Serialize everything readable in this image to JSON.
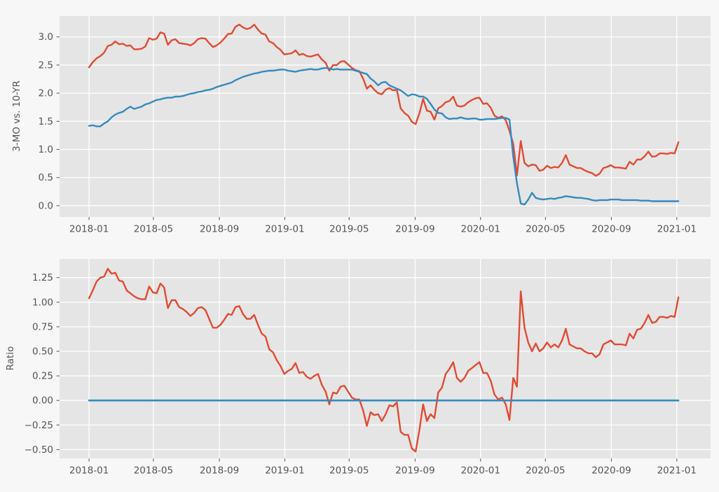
{
  "figure": {
    "bg": "#f7f7f7",
    "panel_bg": "#e5e5e5",
    "grid_color": "#ffffff",
    "tick_color": "#555555",
    "label_color": "#555555",
    "accent_orange": "#e24a33",
    "accent_blue": "#348abd"
  },
  "chart_data": [
    {
      "type": "line",
      "title": "",
      "xlabel": "",
      "ylabel": "3-MO vs. 10-YR",
      "grid": true,
      "legend": "none",
      "ylim": [
        -0.2,
        3.37
      ],
      "xlim_dates": [
        "2017-11-07",
        "2021-03-05"
      ],
      "yticks": [
        0.0,
        0.5,
        1.0,
        1.5,
        2.0,
        2.5,
        3.0
      ],
      "ytick_labels": [
        "0.0",
        "0.5",
        "1.0",
        "1.5",
        "2.0",
        "2.5",
        "3.0"
      ],
      "xtick_labels": [
        "2018-01",
        "2018-05",
        "2018-09",
        "2019-01",
        "2019-05",
        "2019-09",
        "2020-01",
        "2020-05",
        "2020-09",
        "2021-01"
      ],
      "x": [
        "2018-01-01",
        "2018-01-08",
        "2018-01-15",
        "2018-01-22",
        "2018-01-29",
        "2018-02-05",
        "2018-02-12",
        "2018-02-19",
        "2018-02-26",
        "2018-03-05",
        "2018-03-12",
        "2018-03-19",
        "2018-03-26",
        "2018-04-02",
        "2018-04-09",
        "2018-04-16",
        "2018-04-23",
        "2018-04-30",
        "2018-05-07",
        "2018-05-14",
        "2018-05-21",
        "2018-05-28",
        "2018-06-04",
        "2018-06-11",
        "2018-06-18",
        "2018-06-25",
        "2018-07-02",
        "2018-07-09",
        "2018-07-16",
        "2018-07-23",
        "2018-07-30",
        "2018-08-06",
        "2018-08-13",
        "2018-08-20",
        "2018-08-27",
        "2018-09-03",
        "2018-09-10",
        "2018-09-17",
        "2018-09-24",
        "2018-10-01",
        "2018-10-08",
        "2018-10-15",
        "2018-10-22",
        "2018-10-29",
        "2018-11-05",
        "2018-11-12",
        "2018-11-19",
        "2018-11-26",
        "2018-12-03",
        "2018-12-10",
        "2018-12-17",
        "2018-12-24",
        "2018-12-31",
        "2019-01-07",
        "2019-01-14",
        "2019-01-21",
        "2019-01-28",
        "2019-02-04",
        "2019-02-11",
        "2019-02-18",
        "2019-02-25",
        "2019-03-04",
        "2019-03-11",
        "2019-03-18",
        "2019-03-25",
        "2019-04-01",
        "2019-04-08",
        "2019-04-15",
        "2019-04-22",
        "2019-04-29",
        "2019-05-06",
        "2019-05-13",
        "2019-05-20",
        "2019-05-27",
        "2019-06-03",
        "2019-06-10",
        "2019-06-17",
        "2019-06-24",
        "2019-07-01",
        "2019-07-08",
        "2019-07-15",
        "2019-07-22",
        "2019-07-29",
        "2019-08-05",
        "2019-08-12",
        "2019-08-19",
        "2019-08-26",
        "2019-09-02",
        "2019-09-09",
        "2019-09-16",
        "2019-09-23",
        "2019-09-30",
        "2019-10-07",
        "2019-10-14",
        "2019-10-21",
        "2019-10-28",
        "2019-11-04",
        "2019-11-11",
        "2019-11-18",
        "2019-11-25",
        "2019-12-02",
        "2019-12-09",
        "2019-12-16",
        "2019-12-23",
        "2019-12-30",
        "2020-01-06",
        "2020-01-13",
        "2020-01-20",
        "2020-01-27",
        "2020-02-03",
        "2020-02-10",
        "2020-02-17",
        "2020-02-24",
        "2020-03-02",
        "2020-03-09",
        "2020-03-16",
        "2020-03-23",
        "2020-03-30",
        "2020-04-06",
        "2020-04-13",
        "2020-04-20",
        "2020-04-27",
        "2020-05-04",
        "2020-05-11",
        "2020-05-18",
        "2020-05-25",
        "2020-06-01",
        "2020-06-08",
        "2020-06-15",
        "2020-06-22",
        "2020-06-29",
        "2020-07-06",
        "2020-07-13",
        "2020-07-20",
        "2020-07-27",
        "2020-08-03",
        "2020-08-10",
        "2020-08-17",
        "2020-08-24",
        "2020-08-31",
        "2020-09-07",
        "2020-09-14",
        "2020-09-21",
        "2020-09-28",
        "2020-10-05",
        "2020-10-12",
        "2020-10-19",
        "2020-10-26",
        "2020-11-02",
        "2020-11-09",
        "2020-11-16",
        "2020-11-23",
        "2020-11-30",
        "2020-12-07",
        "2020-12-14",
        "2020-12-21",
        "2020-12-28",
        "2021-01-04"
      ],
      "series": [
        {
          "name": "10-yr",
          "color": "#e24a33",
          "values": [
            2.46,
            2.55,
            2.62,
            2.66,
            2.72,
            2.84,
            2.86,
            2.92,
            2.87,
            2.88,
            2.84,
            2.85,
            2.78,
            2.78,
            2.79,
            2.83,
            2.98,
            2.95,
            2.97,
            3.08,
            3.06,
            2.86,
            2.94,
            2.96,
            2.89,
            2.88,
            2.87,
            2.85,
            2.89,
            2.96,
            2.98,
            2.97,
            2.89,
            2.82,
            2.85,
            2.9,
            2.97,
            3.05,
            3.06,
            3.18,
            3.22,
            3.17,
            3.14,
            3.16,
            3.22,
            3.13,
            3.06,
            3.04,
            2.92,
            2.89,
            2.82,
            2.77,
            2.69,
            2.7,
            2.71,
            2.76,
            2.68,
            2.7,
            2.66,
            2.65,
            2.67,
            2.69,
            2.6,
            2.54,
            2.4,
            2.5,
            2.5,
            2.56,
            2.57,
            2.51,
            2.45,
            2.41,
            2.39,
            2.26,
            2.08,
            2.14,
            2.06,
            2.0,
            1.98,
            2.06,
            2.09,
            2.05,
            2.06,
            1.73,
            1.65,
            1.6,
            1.49,
            1.45,
            1.64,
            1.9,
            1.69,
            1.67,
            1.53,
            1.73,
            1.77,
            1.84,
            1.86,
            1.94,
            1.78,
            1.76,
            1.78,
            1.84,
            1.88,
            1.91,
            1.92,
            1.81,
            1.82,
            1.74,
            1.6,
            1.56,
            1.59,
            1.52,
            1.33,
            1.1,
            0.54,
            1.15,
            0.76,
            0.7,
            0.73,
            0.72,
            0.62,
            0.64,
            0.71,
            0.67,
            0.69,
            0.68,
            0.76,
            0.9,
            0.73,
            0.7,
            0.67,
            0.67,
            0.63,
            0.6,
            0.58,
            0.53,
            0.57,
            0.67,
            0.69,
            0.72,
            0.68,
            0.68,
            0.67,
            0.66,
            0.78,
            0.73,
            0.82,
            0.82,
            0.88,
            0.96,
            0.87,
            0.88,
            0.93,
            0.93,
            0.92,
            0.94,
            0.93,
            1.13
          ]
        },
        {
          "name": "3-mo",
          "color": "#348abd",
          "values": [
            1.42,
            1.43,
            1.41,
            1.41,
            1.46,
            1.5,
            1.57,
            1.62,
            1.65,
            1.67,
            1.72,
            1.76,
            1.72,
            1.74,
            1.76,
            1.8,
            1.82,
            1.85,
            1.88,
            1.89,
            1.91,
            1.92,
            1.92,
            1.94,
            1.94,
            1.95,
            1.97,
            1.99,
            2.0,
            2.02,
            2.03,
            2.05,
            2.06,
            2.08,
            2.11,
            2.13,
            2.15,
            2.17,
            2.19,
            2.23,
            2.26,
            2.29,
            2.31,
            2.33,
            2.35,
            2.36,
            2.38,
            2.39,
            2.4,
            2.4,
            2.41,
            2.42,
            2.42,
            2.4,
            2.39,
            2.38,
            2.4,
            2.41,
            2.42,
            2.43,
            2.42,
            2.42,
            2.44,
            2.45,
            2.44,
            2.42,
            2.43,
            2.42,
            2.42,
            2.42,
            2.42,
            2.4,
            2.38,
            2.36,
            2.34,
            2.26,
            2.21,
            2.14,
            2.19,
            2.2,
            2.14,
            2.11,
            2.08,
            2.05,
            2.0,
            1.95,
            1.98,
            1.97,
            1.94,
            1.94,
            1.9,
            1.81,
            1.71,
            1.65,
            1.64,
            1.57,
            1.54,
            1.55,
            1.55,
            1.57,
            1.55,
            1.54,
            1.55,
            1.55,
            1.53,
            1.53,
            1.54,
            1.54,
            1.54,
            1.55,
            1.56,
            1.56,
            1.53,
            0.87,
            0.4,
            0.04,
            0.02,
            0.11,
            0.23,
            0.14,
            0.12,
            0.11,
            0.12,
            0.13,
            0.12,
            0.14,
            0.15,
            0.17,
            0.16,
            0.15,
            0.14,
            0.14,
            0.13,
            0.12,
            0.1,
            0.09,
            0.1,
            0.1,
            0.1,
            0.11,
            0.11,
            0.11,
            0.1,
            0.1,
            0.1,
            0.1,
            0.1,
            0.09,
            0.09,
            0.09,
            0.08,
            0.08,
            0.08,
            0.08,
            0.08,
            0.08,
            0.08,
            0.08
          ]
        }
      ]
    },
    {
      "type": "line",
      "title": "",
      "xlabel": "",
      "ylabel": "Ratio",
      "grid": true,
      "legend": "none",
      "ylim": [
        -0.59,
        1.44
      ],
      "xlim_dates": [
        "2017-11-07",
        "2021-03-05"
      ],
      "yticks": [
        -0.5,
        -0.25,
        0.0,
        0.25,
        0.5,
        0.75,
        1.0,
        1.25
      ],
      "ytick_labels": [
        "−0.50",
        "−0.25",
        "0.00",
        "0.25",
        "0.50",
        "0.75",
        "1.00",
        "1.25"
      ],
      "xtick_labels": [
        "2018-01",
        "2018-05",
        "2018-09",
        "2019-01",
        "2019-05",
        "2019-09",
        "2020-01",
        "2020-05",
        "2020-09",
        "2021-01"
      ],
      "x": [
        "2018-01-01",
        "2018-01-08",
        "2018-01-15",
        "2018-01-22",
        "2018-01-29",
        "2018-02-05",
        "2018-02-12",
        "2018-02-19",
        "2018-02-26",
        "2018-03-05",
        "2018-03-12",
        "2018-03-19",
        "2018-03-26",
        "2018-04-02",
        "2018-04-09",
        "2018-04-16",
        "2018-04-23",
        "2018-04-30",
        "2018-05-07",
        "2018-05-14",
        "2018-05-21",
        "2018-05-28",
        "2018-06-04",
        "2018-06-11",
        "2018-06-18",
        "2018-06-25",
        "2018-07-02",
        "2018-07-09",
        "2018-07-16",
        "2018-07-23",
        "2018-07-30",
        "2018-08-06",
        "2018-08-13",
        "2018-08-20",
        "2018-08-27",
        "2018-09-03",
        "2018-09-10",
        "2018-09-17",
        "2018-09-24",
        "2018-10-01",
        "2018-10-08",
        "2018-10-15",
        "2018-10-22",
        "2018-10-29",
        "2018-11-05",
        "2018-11-12",
        "2018-11-19",
        "2018-11-26",
        "2018-12-03",
        "2018-12-10",
        "2018-12-17",
        "2018-12-24",
        "2018-12-31",
        "2019-01-07",
        "2019-01-14",
        "2019-01-21",
        "2019-01-28",
        "2019-02-04",
        "2019-02-11",
        "2019-02-18",
        "2019-02-25",
        "2019-03-04",
        "2019-03-11",
        "2019-03-18",
        "2019-03-25",
        "2019-04-01",
        "2019-04-08",
        "2019-04-15",
        "2019-04-22",
        "2019-04-29",
        "2019-05-06",
        "2019-05-13",
        "2019-05-20",
        "2019-05-27",
        "2019-06-03",
        "2019-06-10",
        "2019-06-17",
        "2019-06-24",
        "2019-07-01",
        "2019-07-08",
        "2019-07-15",
        "2019-07-22",
        "2019-07-29",
        "2019-08-05",
        "2019-08-12",
        "2019-08-19",
        "2019-08-26",
        "2019-09-02",
        "2019-09-09",
        "2019-09-16",
        "2019-09-23",
        "2019-09-30",
        "2019-10-07",
        "2019-10-14",
        "2019-10-21",
        "2019-10-28",
        "2019-11-04",
        "2019-11-11",
        "2019-11-18",
        "2019-11-25",
        "2019-12-02",
        "2019-12-09",
        "2019-12-16",
        "2019-12-23",
        "2019-12-30",
        "2020-01-06",
        "2020-01-13",
        "2020-01-20",
        "2020-01-27",
        "2020-02-03",
        "2020-02-10",
        "2020-02-17",
        "2020-02-24",
        "2020-03-02",
        "2020-03-09",
        "2020-03-16",
        "2020-03-23",
        "2020-03-30",
        "2020-04-06",
        "2020-04-13",
        "2020-04-20",
        "2020-04-27",
        "2020-05-04",
        "2020-05-11",
        "2020-05-18",
        "2020-05-25",
        "2020-06-01",
        "2020-06-08",
        "2020-06-15",
        "2020-06-22",
        "2020-06-29",
        "2020-07-06",
        "2020-07-13",
        "2020-07-20",
        "2020-07-27",
        "2020-08-03",
        "2020-08-10",
        "2020-08-17",
        "2020-08-24",
        "2020-08-31",
        "2020-09-07",
        "2020-09-14",
        "2020-09-21",
        "2020-09-28",
        "2020-10-05",
        "2020-10-12",
        "2020-10-19",
        "2020-10-26",
        "2020-11-02",
        "2020-11-09",
        "2020-11-16",
        "2020-11-23",
        "2020-11-30",
        "2020-12-07",
        "2020-12-14",
        "2020-12-21",
        "2020-12-28",
        "2021-01-04"
      ],
      "series": [
        {
          "name": "ratio",
          "color": "#e24a33",
          "values": [
            1.04,
            1.12,
            1.21,
            1.25,
            1.26,
            1.34,
            1.29,
            1.3,
            1.22,
            1.21,
            1.12,
            1.09,
            1.06,
            1.04,
            1.03,
            1.03,
            1.16,
            1.1,
            1.09,
            1.19,
            1.15,
            0.94,
            1.02,
            1.02,
            0.95,
            0.93,
            0.9,
            0.86,
            0.89,
            0.94,
            0.95,
            0.92,
            0.83,
            0.74,
            0.74,
            0.77,
            0.82,
            0.88,
            0.87,
            0.95,
            0.96,
            0.88,
            0.83,
            0.83,
            0.87,
            0.77,
            0.68,
            0.65,
            0.52,
            0.49,
            0.41,
            0.35,
            0.27,
            0.3,
            0.32,
            0.38,
            0.28,
            0.29,
            0.24,
            0.22,
            0.25,
            0.27,
            0.16,
            0.09,
            -0.04,
            0.08,
            0.07,
            0.14,
            0.15,
            0.09,
            0.03,
            0.01,
            0.01,
            -0.1,
            -0.26,
            -0.12,
            -0.15,
            -0.14,
            -0.21,
            -0.14,
            -0.05,
            -0.06,
            -0.02,
            -0.32,
            -0.35,
            -0.35,
            -0.49,
            -0.52,
            -0.3,
            -0.04,
            -0.21,
            -0.14,
            -0.18,
            0.08,
            0.13,
            0.27,
            0.32,
            0.39,
            0.23,
            0.19,
            0.23,
            0.3,
            0.33,
            0.36,
            0.39,
            0.28,
            0.28,
            0.2,
            0.06,
            0.01,
            0.03,
            -0.04,
            -0.2,
            0.23,
            0.14,
            1.11,
            0.74,
            0.59,
            0.5,
            0.58,
            0.5,
            0.53,
            0.59,
            0.54,
            0.57,
            0.54,
            0.61,
            0.73,
            0.57,
            0.55,
            0.53,
            0.53,
            0.5,
            0.48,
            0.48,
            0.44,
            0.47,
            0.57,
            0.59,
            0.61,
            0.57,
            0.57,
            0.57,
            0.56,
            0.68,
            0.63,
            0.72,
            0.73,
            0.79,
            0.87,
            0.79,
            0.8,
            0.85,
            0.85,
            0.84,
            0.86,
            0.85,
            1.05
          ]
        },
        {
          "name": "zero-baseline",
          "color": "#348abd",
          "constant": 0,
          "width": 2.6
        }
      ]
    }
  ]
}
